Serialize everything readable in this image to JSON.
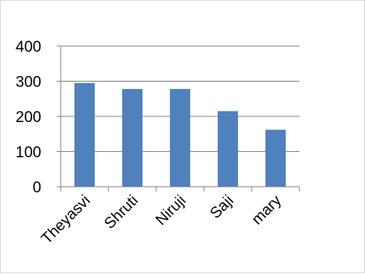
{
  "chart_data": {
    "type": "bar",
    "title": "",
    "xlabel": "",
    "ylabel": "",
    "categories": [
      "Theyasvi",
      "Shruti",
      "Niruji",
      "Saji",
      "mary"
    ],
    "values": [
      295,
      278,
      278,
      215,
      162
    ],
    "ylim": [
      0,
      400
    ],
    "yticks": [
      0,
      100,
      200,
      300,
      400
    ],
    "grid": true,
    "legend": "none",
    "bar_color": "#4F81BD",
    "grid_color": "#868686"
  }
}
